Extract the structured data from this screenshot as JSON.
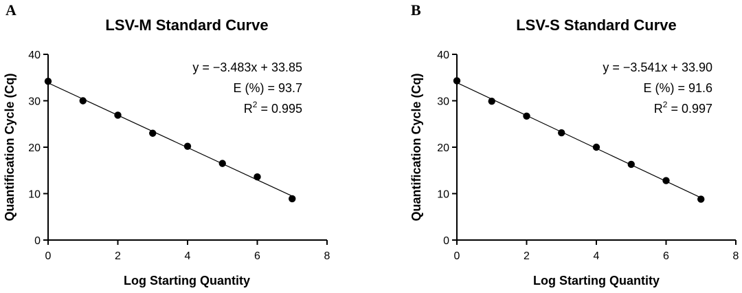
{
  "chart_data": [
    {
      "type": "scatter",
      "panel": "A",
      "title": "LSV-M Standard Curve",
      "xlabel": "Log Starting Quantity",
      "ylabel": "Quantification Cycle (Cq)",
      "xlim": [
        0,
        8
      ],
      "ylim": [
        0,
        40
      ],
      "xticks": [
        0,
        2,
        4,
        6,
        8
      ],
      "yticks": [
        0,
        10,
        20,
        30,
        40
      ],
      "grid": false,
      "series": [
        {
          "x": [
            0,
            1,
            2,
            3,
            4,
            5,
            6,
            7
          ],
          "y": [
            34.2,
            30.0,
            26.9,
            23.0,
            20.2,
            16.5,
            13.6,
            8.9
          ]
        }
      ],
      "fit": {
        "slope": -3.483,
        "intercept": 33.85,
        "x_range": [
          0,
          7
        ]
      },
      "annotations": {
        "equation": "y = −3.483x + 33.85",
        "efficiency": "E (%) = 93.7",
        "r2_prefix": "R",
        "r2_sup": "2",
        "r2_value": " = 0.995"
      }
    },
    {
      "type": "scatter",
      "panel": "B",
      "title": "LSV-S Standard Curve",
      "xlabel": "Log Starting Quantity",
      "ylabel": "Quantification Cycle (Cq)",
      "xlim": [
        0,
        8
      ],
      "ylim": [
        0,
        40
      ],
      "xticks": [
        0,
        2,
        4,
        6,
        8
      ],
      "yticks": [
        0,
        10,
        20,
        30,
        40
      ],
      "grid": false,
      "series": [
        {
          "x": [
            0,
            1,
            2,
            3,
            4,
            5,
            6,
            7
          ],
          "y": [
            34.3,
            29.9,
            26.7,
            23.1,
            20.0,
            16.3,
            12.8,
            8.8
          ]
        }
      ],
      "fit": {
        "slope": -3.541,
        "intercept": 33.9,
        "x_range": [
          0,
          7
        ]
      },
      "annotations": {
        "equation": "y = −3.541x + 33.90",
        "efficiency": "E (%) = 91.6",
        "r2_prefix": "R",
        "r2_sup": "2",
        "r2_value": " = 0.997"
      }
    }
  ]
}
